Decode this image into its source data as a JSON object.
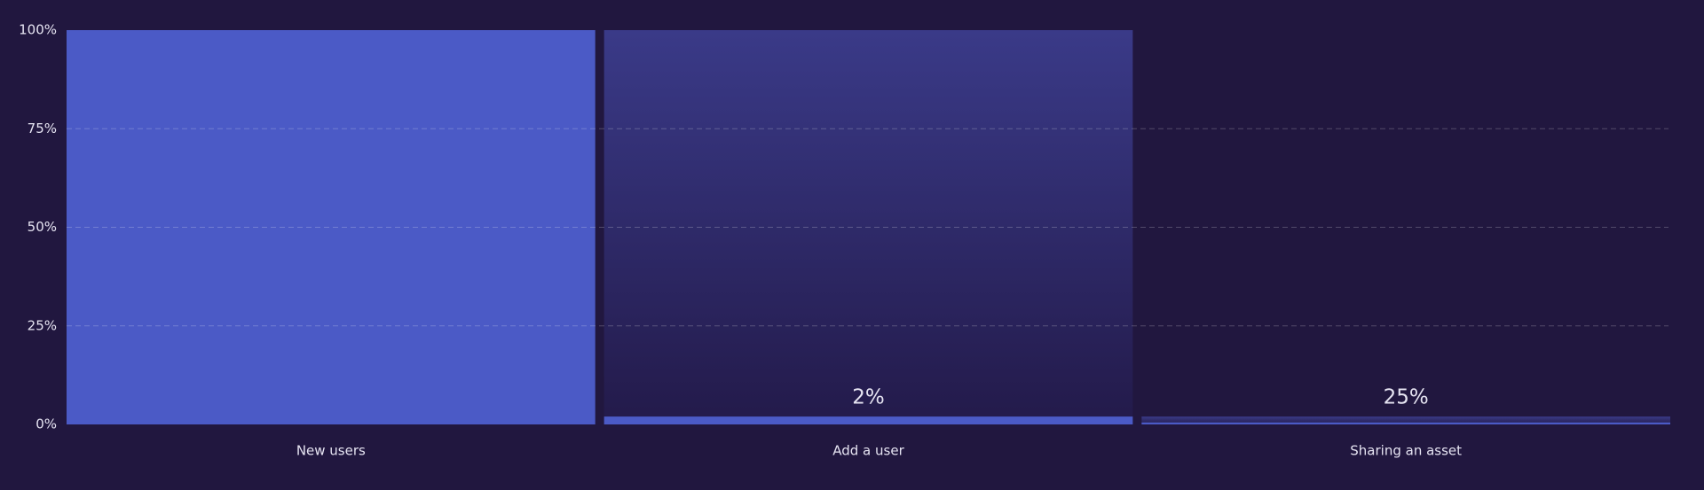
{
  "chart_data": {
    "type": "funnel",
    "categories": [
      "New users",
      "Add a user",
      "Sharing an asset"
    ],
    "values": [
      100,
      2,
      0.5
    ],
    "conversion": [
      null,
      2,
      25
    ],
    "conversion_labels": [
      null,
      "2%",
      "25%"
    ],
    "color": "#4b5ac6",
    "ylim": [
      0,
      100
    ],
    "yticks": [
      {
        "value": 0,
        "label": "0%"
      },
      {
        "value": 25,
        "label": "25%"
      },
      {
        "value": 50,
        "label": "50%"
      },
      {
        "value": 75,
        "label": "75%"
      },
      {
        "value": 100,
        "label": "100%"
      }
    ],
    "grid": true
  }
}
